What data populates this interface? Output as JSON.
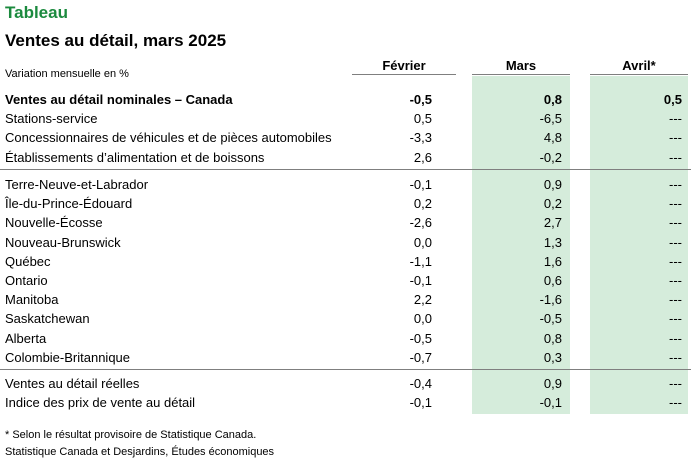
{
  "header": {
    "tag": "Tableau",
    "title": "Ventes au détail, mars 2025",
    "subheader": "Variation mensuelle en %",
    "columns": [
      "Février",
      "Mars",
      "Avril*"
    ]
  },
  "colors": {
    "accent": "#1b8a3e",
    "shading": "#d5ecdb"
  },
  "groups": [
    {
      "rows": [
        {
          "label": "Ventes au détail nominales – Canada",
          "bold": true,
          "values": [
            "-0,5",
            "0,8",
            "0,5"
          ]
        },
        {
          "label": "Stations-service",
          "values": [
            "0,5",
            "-6,5",
            "---"
          ]
        },
        {
          "label": "Concessionnaires de véhicules et de pièces automobiles",
          "values": [
            "-3,3",
            "4,8",
            "---"
          ]
        },
        {
          "label": "Établissements d’alimentation et de boissons",
          "values": [
            "2,6",
            "-0,2",
            "---"
          ]
        }
      ]
    },
    {
      "rows": [
        {
          "label": "Terre-Neuve-et-Labrador",
          "values": [
            "-0,1",
            "0,9",
            "---"
          ]
        },
        {
          "label": "Île-du-Prince-Édouard",
          "values": [
            "0,2",
            "0,2",
            "---"
          ]
        },
        {
          "label": "Nouvelle-Écosse",
          "values": [
            "-2,6",
            "2,7",
            "---"
          ]
        },
        {
          "label": "Nouveau-Brunswick",
          "values": [
            "0,0",
            "1,3",
            "---"
          ]
        },
        {
          "label": "Québec",
          "values": [
            "-1,1",
            "1,6",
            "---"
          ]
        },
        {
          "label": "Ontario",
          "values": [
            "-0,1",
            "0,6",
            "---"
          ]
        },
        {
          "label": "Manitoba",
          "values": [
            "2,2",
            "-1,6",
            "---"
          ]
        },
        {
          "label": "Saskatchewan",
          "values": [
            "0,0",
            "-0,5",
            "---"
          ]
        },
        {
          "label": "Alberta",
          "values": [
            "-0,5",
            "0,8",
            "---"
          ]
        },
        {
          "label": "Colombie-Britannique",
          "values": [
            "-0,7",
            "0,3",
            "---"
          ]
        }
      ]
    },
    {
      "rows": [
        {
          "label": "Ventes au détail réelles",
          "values": [
            "-0,4",
            "0,9",
            "---"
          ]
        },
        {
          "label": "Indice des prix de vente au détail",
          "values": [
            "-0,1",
            "-0,1",
            "---"
          ]
        }
      ]
    }
  ],
  "footer": {
    "note": "* Selon le résultat provisoire de Statistique Canada.",
    "source": "Statistique Canada et Desjardins, Études économiques"
  }
}
